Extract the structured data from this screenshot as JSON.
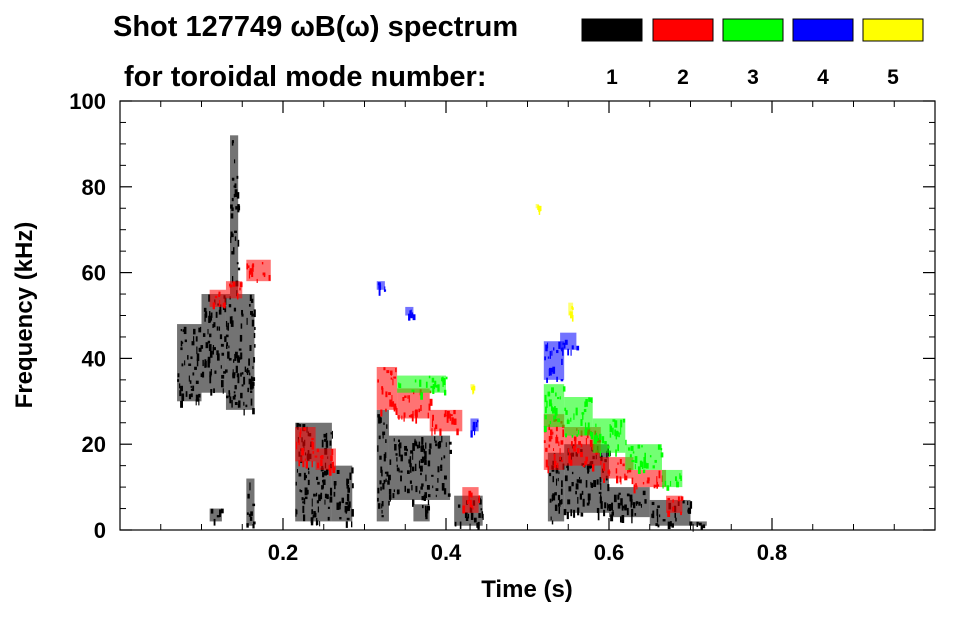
{
  "chart_data": {
    "type": "heatmap",
    "title": "Shot 127749 ωB(ω) spectrum",
    "subtitle": "for toroidal mode number:",
    "xlabel": "Time (s)",
    "ylabel": "Frequency (kHz)",
    "xlim": [
      0.0,
      1.0
    ],
    "ylim": [
      0,
      100
    ],
    "xticks": [
      0.2,
      0.4,
      0.6,
      0.8
    ],
    "xtick_labels": [
      "0.2",
      "0.4",
      "0.6",
      "0.8"
    ],
    "yticks": [
      0,
      20,
      40,
      60,
      80,
      100
    ],
    "ytick_labels": [
      "0",
      "20",
      "40",
      "60",
      "80",
      "100"
    ],
    "legend": [
      {
        "label": "1",
        "color": "#000000"
      },
      {
        "label": "2",
        "color": "#ff0000"
      },
      {
        "label": "3",
        "color": "#00ff00"
      },
      {
        "label": "4",
        "color": "#0000ff"
      },
      {
        "label": "5",
        "color": "#ffff00"
      }
    ],
    "series": [
      {
        "name": "n=1",
        "color": "#000000",
        "bands": [
          [
            0.07,
            0.1,
            30,
            48
          ],
          [
            0.1,
            0.13,
            32,
            55
          ],
          [
            0.13,
            0.165,
            28,
            55
          ],
          [
            0.135,
            0.145,
            55,
            92
          ],
          [
            0.155,
            0.165,
            1,
            12
          ],
          [
            0.11,
            0.125,
            2,
            5
          ],
          [
            0.215,
            0.26,
            2,
            25
          ],
          [
            0.26,
            0.285,
            2,
            15
          ],
          [
            0.315,
            0.33,
            2,
            28
          ],
          [
            0.33,
            0.405,
            7,
            22
          ],
          [
            0.36,
            0.38,
            2,
            6
          ],
          [
            0.41,
            0.445,
            1,
            8
          ],
          [
            0.525,
            0.545,
            2,
            18
          ],
          [
            0.545,
            0.6,
            4,
            20
          ],
          [
            0.6,
            0.65,
            3,
            10
          ],
          [
            0.65,
            0.7,
            1,
            7
          ],
          [
            0.7,
            0.72,
            1,
            2
          ]
        ]
      },
      {
        "name": "n=2",
        "color": "#ff0000",
        "bands": [
          [
            0.11,
            0.13,
            52,
            56
          ],
          [
            0.13,
            0.15,
            54,
            58
          ],
          [
            0.155,
            0.185,
            58,
            63
          ],
          [
            0.215,
            0.24,
            16,
            24
          ],
          [
            0.24,
            0.265,
            14,
            19
          ],
          [
            0.315,
            0.34,
            28,
            38
          ],
          [
            0.34,
            0.38,
            26,
            33
          ],
          [
            0.38,
            0.42,
            23,
            28
          ],
          [
            0.42,
            0.44,
            4,
            10
          ],
          [
            0.52,
            0.545,
            14,
            27
          ],
          [
            0.545,
            0.59,
            15,
            24
          ],
          [
            0.59,
            0.63,
            12,
            17
          ],
          [
            0.63,
            0.67,
            10,
            14
          ],
          [
            0.67,
            0.69,
            4,
            8
          ]
        ]
      },
      {
        "name": "n=3",
        "color": "#00ff00",
        "bands": [
          [
            0.34,
            0.4,
            32,
            36
          ],
          [
            0.52,
            0.545,
            24,
            34
          ],
          [
            0.545,
            0.58,
            22,
            31
          ],
          [
            0.58,
            0.62,
            18,
            26
          ],
          [
            0.62,
            0.665,
            14,
            20
          ],
          [
            0.665,
            0.69,
            10,
            14
          ]
        ]
      },
      {
        "name": "n=4",
        "color": "#0000ff",
        "bands": [
          [
            0.315,
            0.325,
            56,
            58
          ],
          [
            0.35,
            0.36,
            50,
            52
          ],
          [
            0.52,
            0.545,
            35,
            44
          ],
          [
            0.54,
            0.56,
            42,
            46
          ],
          [
            0.43,
            0.44,
            23,
            26
          ]
        ]
      },
      {
        "name": "n=5",
        "color": "#ffff00",
        "bands": [
          [
            0.55,
            0.556,
            50,
            53
          ],
          [
            0.43,
            0.435,
            33,
            34
          ],
          [
            0.51,
            0.514,
            75,
            76
          ]
        ]
      }
    ]
  }
}
